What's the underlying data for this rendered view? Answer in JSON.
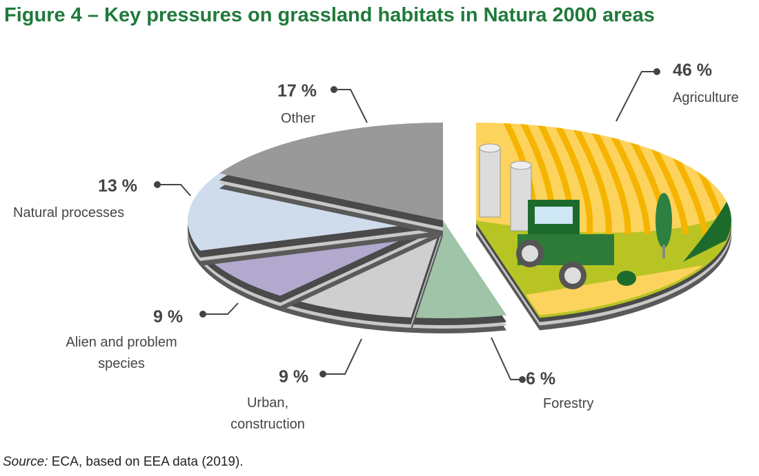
{
  "title": "Figure 4 – Key pressures on grassland habitats in Natura 2000 areas",
  "source_prefix": "Source:",
  "source_text": " ECA, based on EEA data (2019).",
  "chart_data": {
    "type": "pie",
    "title": "Figure 4 – Key pressures on grassland habitats in Natura 2000 areas",
    "slices": [
      {
        "name": "Agriculture",
        "value": 46,
        "pct_label": "46 %",
        "color": "#fcd35c",
        "exploded": true
      },
      {
        "name": "Forestry",
        "value": 6,
        "pct_label": "6 %",
        "color": "#9fc4a8"
      },
      {
        "name": "Urban, construction",
        "value": 9,
        "pct_label": "9 %",
        "color": "#cfcfcf"
      },
      {
        "name": "Alien and problem species",
        "value": 9,
        "pct_label": "9 %",
        "color": "#b3a9cf"
      },
      {
        "name": "Natural processes",
        "value": 13,
        "pct_label": "13 %",
        "color": "#cfdceb"
      },
      {
        "name": "Other",
        "value": 17,
        "pct_label": "17 %",
        "color": "#999999"
      }
    ],
    "start": "top",
    "direction": "clockwise",
    "unit": "%"
  }
}
